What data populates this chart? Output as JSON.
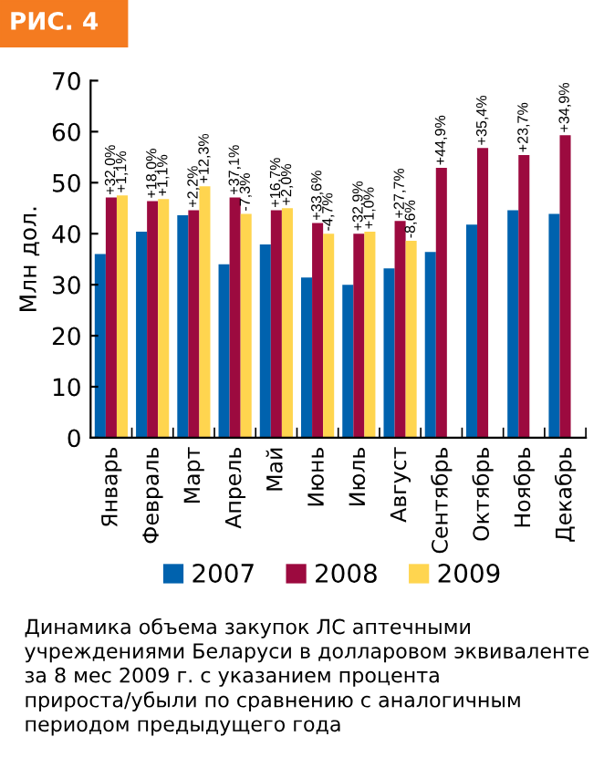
{
  "chart_data": {
    "type": "bar",
    "title": "РИС. 4",
    "ylabel": "Млн дол.",
    "categories": [
      "Январь",
      "Февраль",
      "Март",
      "Апрель",
      "Май",
      "Июнь",
      "Июль",
      "Август",
      "Сентябрь",
      "Октябрь",
      "Ноябрь",
      "Декабрь"
    ],
    "series": [
      {
        "name": "2007",
        "color": "#0062ae",
        "values": [
          36,
          40.4,
          43.6,
          34,
          37.9,
          31.4,
          30,
          33.2,
          36.4,
          41.8,
          44.6,
          43.9
        ]
      },
      {
        "name": "2008",
        "color": "#9c0a3f",
        "values": [
          47.1,
          46.4,
          44.6,
          47.1,
          44.6,
          42.1,
          40,
          42.5,
          52.9,
          56.8,
          55.4,
          59.3
        ]
      },
      {
        "name": "2009",
        "color": "#ffd54f",
        "values": [
          47.5,
          46.8,
          49.3,
          43.9,
          45,
          40,
          40.4,
          38.6,
          null,
          null,
          null,
          null
        ]
      }
    ],
    "ylim": [
      0,
      70
    ],
    "yticks": [
      0,
      10,
      20,
      30,
      40,
      50,
      60,
      70
    ],
    "grid": false,
    "legend": "bottom",
    "annotations": [
      {
        "text": "+32,0%",
        "x": "Январь",
        "y": 47.1
      },
      {
        "text": "+1,1%",
        "x": "Январь",
        "y": 47.5
      },
      {
        "text": "+18,0%",
        "x": "Февраль",
        "y": 46.4
      },
      {
        "text": "+1,1%",
        "x": "Февраль",
        "y": 46.8
      },
      {
        "text": "+2,2%",
        "x": "Март",
        "y": 44.6
      },
      {
        "text": "+12,3%",
        "x": "Март",
        "y": 49.3
      },
      {
        "text": "+37,1%",
        "x": "Апрель",
        "y": 47.1
      },
      {
        "text": "-7,3%",
        "x": "Апрель",
        "y": 43.9
      },
      {
        "text": "+16,7%",
        "x": "Май",
        "y": 44.6
      },
      {
        "text": "+2,0%",
        "x": "Май",
        "y": 45
      },
      {
        "text": "+33,6%",
        "x": "Июнь",
        "y": 42.1
      },
      {
        "text": "-4,7%",
        "x": "Июнь",
        "y": 40
      },
      {
        "text": "+32,9%",
        "x": "Июль",
        "y": 40
      },
      {
        "text": "+1,0%",
        "x": "Июль",
        "y": 40.4
      },
      {
        "text": "+27,7%",
        "x": "Август",
        "y": 42.5
      },
      {
        "text": "-8,6%",
        "x": "Август",
        "y": 38.6
      },
      {
        "text": "+44,9%",
        "x": "Сентябрь",
        "y": 52.9
      },
      {
        "text": "+35,4%",
        "x": "Октябрь",
        "y": 56.8
      },
      {
        "text": "+23,7%",
        "x": "Ноябрь",
        "y": 55.4
      },
      {
        "text": "+34,9%",
        "x": "Декабрь",
        "y": 59.3
      },
      "Динамика объема закупок ЛС аптечными учреждениями Беларуси в долларовом эквиваленте за 8 мес 2009 г. с указанием процента прироста/убыли по сравнению с аналогичным периодом предыдущего года"
    ]
  }
}
